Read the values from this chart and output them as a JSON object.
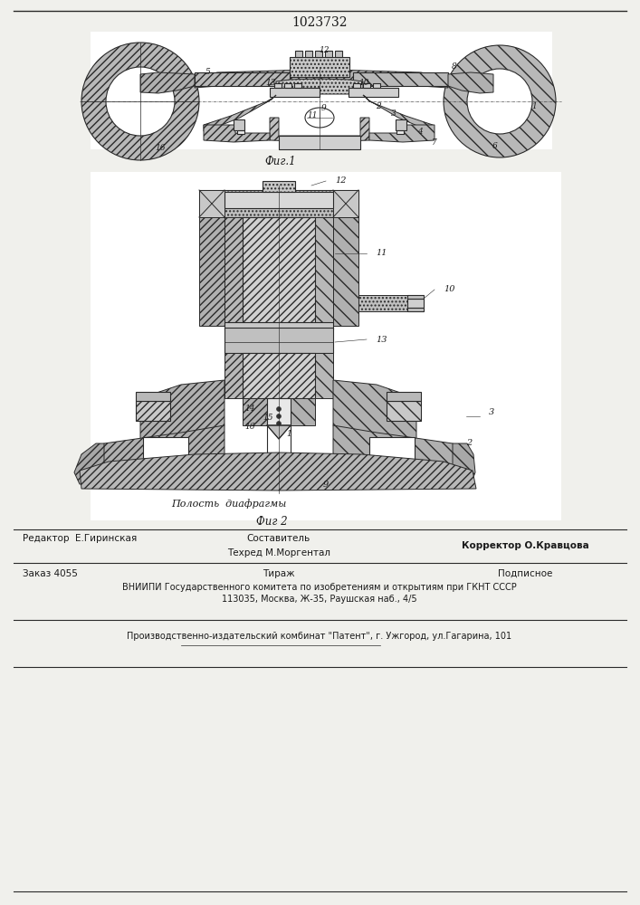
{
  "patent_number": "1023732",
  "bg": "#f0f0ec",
  "dc": "#2a2a2a",
  "tc": "#1a1a1a",
  "lc": "#333333",
  "hc": "#888888",
  "fig1_caption": "Фиг.1",
  "fig2_caption": "Фиг 2",
  "fig2_cavity_label": "Полость  диафрагмы",
  "footer": {
    "editor": "Редактор  Е.Гиринская",
    "compiler_title": "Составитель",
    "compiler": "Техред М.Моргентал",
    "corrector": "Корректор О.Кравцова",
    "order": "Заказ 4055",
    "circ": "Тираж",
    "sub": "Подписное",
    "vniipи": "ВНИИПИ Государственного комитета по изобретениям и открытиям при ГКНТ СССР",
    "addr": "113035, Москва, Ж-35, Раушская наб., 4/5",
    "prod": "Производственно-издательский комбинат \"Патент\", г. Ужгород, ул.Гагарина, 101"
  }
}
